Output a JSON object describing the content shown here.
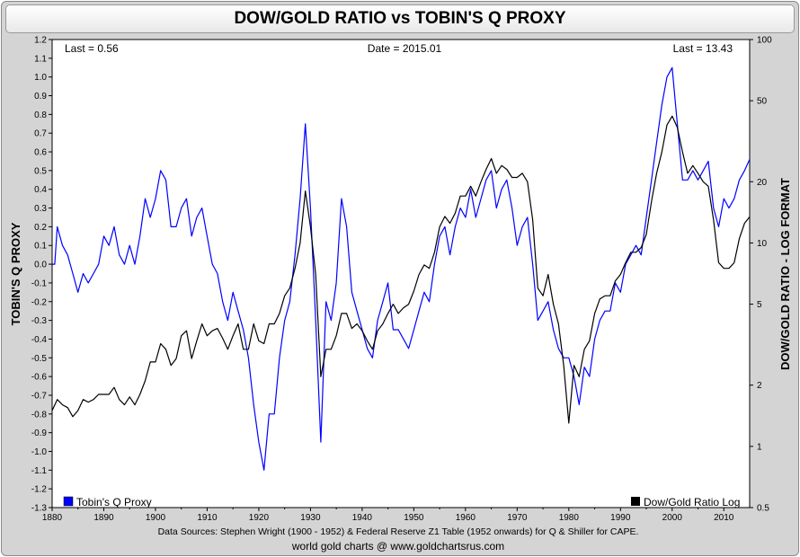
{
  "chart_data": {
    "type": "line",
    "title": "DOW/GOLD RATIO vs TOBIN'S Q PROXY",
    "ylabel_left": "TOBIN'S Q PROXY",
    "ylabel_right": "DOW/GOLD RATIO - LOG FORMAT",
    "xlim": [
      1880,
      2015
    ],
    "ylim_left": [
      -1.3,
      1.2
    ],
    "ylim_right": [
      0.5,
      100
    ],
    "right_scale": "log",
    "grid": false,
    "x_ticks": [
      "1880",
      "1890",
      "1900",
      "1910",
      "1920",
      "1930",
      "1940",
      "1950",
      "1960",
      "1970",
      "1980",
      "1990",
      "2000",
      "2010"
    ],
    "left_ticks": [
      "1.2",
      "1.1",
      "1.0",
      "0.9",
      "0.8",
      "0.7",
      "0.6",
      "0.5",
      "0.4",
      "0.3",
      "0.2",
      "0.1",
      "0.0",
      "-0.1",
      "-0.2",
      "-0.3",
      "-0.4",
      "-0.5",
      "-0.6",
      "-0.7",
      "-0.8",
      "-0.9",
      "-1.0",
      "-1.1",
      "-1.2",
      "-1.3"
    ],
    "right_ticks": [
      "100",
      "50",
      "20",
      "10",
      "5",
      "2",
      "1",
      "0.5"
    ],
    "annotations": {
      "last_left": "Last = 0.56",
      "date": "Date = 2015.01",
      "last_right": "Last = 13.43"
    },
    "legend": {
      "tobin": "Tobin's Q Proxy",
      "dowgold": "Dow/Gold Ratio Log"
    },
    "series": [
      {
        "name": "Tobin's Q Proxy",
        "color": "#0000ff",
        "axis": "left",
        "points": [
          [
            1880,
            0.0
          ],
          [
            1880.5,
            0.0
          ],
          [
            1881,
            0.2
          ],
          [
            1882,
            0.1
          ],
          [
            1883,
            0.05
          ],
          [
            1884,
            -0.05
          ],
          [
            1885,
            -0.15
          ],
          [
            1886,
            -0.05
          ],
          [
            1887,
            -0.1
          ],
          [
            1888,
            -0.05
          ],
          [
            1889,
            0.0
          ],
          [
            1890,
            0.15
          ],
          [
            1891,
            0.1
          ],
          [
            1892,
            0.2
          ],
          [
            1893,
            0.05
          ],
          [
            1894,
            0.0
          ],
          [
            1895,
            0.1
          ],
          [
            1896,
            0.0
          ],
          [
            1897,
            0.15
          ],
          [
            1898,
            0.35
          ],
          [
            1899,
            0.25
          ],
          [
            1900,
            0.35
          ],
          [
            1901,
            0.5
          ],
          [
            1902,
            0.45
          ],
          [
            1903,
            0.2
          ],
          [
            1904,
            0.2
          ],
          [
            1905,
            0.3
          ],
          [
            1906,
            0.35
          ],
          [
            1907,
            0.15
          ],
          [
            1908,
            0.25
          ],
          [
            1909,
            0.3
          ],
          [
            1910,
            0.15
          ],
          [
            1911,
            0.0
          ],
          [
            1912,
            -0.05
          ],
          [
            1913,
            -0.2
          ],
          [
            1914,
            -0.3
          ],
          [
            1915,
            -0.15
          ],
          [
            1916,
            -0.25
          ],
          [
            1917,
            -0.35
          ],
          [
            1918,
            -0.5
          ],
          [
            1919,
            -0.75
          ],
          [
            1920,
            -0.95
          ],
          [
            1921,
            -1.1
          ],
          [
            1922,
            -0.8
          ],
          [
            1923,
            -0.8
          ],
          [
            1924,
            -0.5
          ],
          [
            1925,
            -0.3
          ],
          [
            1926,
            -0.2
          ],
          [
            1927,
            0.05
          ],
          [
            1928,
            0.35
          ],
          [
            1929,
            0.75
          ],
          [
            1930,
            0.3
          ],
          [
            1931,
            -0.3
          ],
          [
            1932,
            -0.95
          ],
          [
            1933,
            -0.2
          ],
          [
            1934,
            -0.3
          ],
          [
            1935,
            -0.1
          ],
          [
            1936,
            0.35
          ],
          [
            1937,
            0.2
          ],
          [
            1938,
            -0.15
          ],
          [
            1939,
            -0.25
          ],
          [
            1940,
            -0.35
          ],
          [
            1941,
            -0.45
          ],
          [
            1942,
            -0.5
          ],
          [
            1943,
            -0.3
          ],
          [
            1944,
            -0.2
          ],
          [
            1945,
            -0.1
          ],
          [
            1946,
            -0.35
          ],
          [
            1947,
            -0.35
          ],
          [
            1948,
            -0.4
          ],
          [
            1949,
            -0.45
          ],
          [
            1950,
            -0.35
          ],
          [
            1951,
            -0.25
          ],
          [
            1952,
            -0.15
          ],
          [
            1953,
            -0.2
          ],
          [
            1954,
            0.0
          ],
          [
            1955,
            0.15
          ],
          [
            1956,
            0.2
          ],
          [
            1957,
            0.05
          ],
          [
            1958,
            0.2
          ],
          [
            1959,
            0.3
          ],
          [
            1960,
            0.25
          ],
          [
            1961,
            0.4
          ],
          [
            1962,
            0.25
          ],
          [
            1963,
            0.35
          ],
          [
            1964,
            0.45
          ],
          [
            1965,
            0.5
          ],
          [
            1966,
            0.3
          ],
          [
            1967,
            0.4
          ],
          [
            1968,
            0.45
          ],
          [
            1969,
            0.3
          ],
          [
            1970,
            0.1
          ],
          [
            1971,
            0.2
          ],
          [
            1972,
            0.25
          ],
          [
            1973,
            0.0
          ],
          [
            1974,
            -0.3
          ],
          [
            1975,
            -0.25
          ],
          [
            1976,
            -0.2
          ],
          [
            1977,
            -0.35
          ],
          [
            1978,
            -0.45
          ],
          [
            1979,
            -0.5
          ],
          [
            1980,
            -0.5
          ],
          [
            1981,
            -0.6
          ],
          [
            1982,
            -0.75
          ],
          [
            1983,
            -0.55
          ],
          [
            1984,
            -0.6
          ],
          [
            1985,
            -0.4
          ],
          [
            1986,
            -0.3
          ],
          [
            1987,
            -0.25
          ],
          [
            1988,
            -0.25
          ],
          [
            1989,
            -0.1
          ],
          [
            1990,
            -0.15
          ],
          [
            1991,
            0.0
          ],
          [
            1992,
            0.05
          ],
          [
            1993,
            0.1
          ],
          [
            1994,
            0.05
          ],
          [
            1995,
            0.25
          ],
          [
            1996,
            0.45
          ],
          [
            1997,
            0.65
          ],
          [
            1998,
            0.85
          ],
          [
            1999,
            1.0
          ],
          [
            2000,
            1.05
          ],
          [
            2001,
            0.75
          ],
          [
            2002,
            0.45
          ],
          [
            2003,
            0.45
          ],
          [
            2004,
            0.5
          ],
          [
            2005,
            0.45
          ],
          [
            2006,
            0.5
          ],
          [
            2007,
            0.55
          ],
          [
            2008,
            0.3
          ],
          [
            2009,
            0.2
          ],
          [
            2010,
            0.35
          ],
          [
            2011,
            0.3
          ],
          [
            2012,
            0.35
          ],
          [
            2013,
            0.45
          ],
          [
            2014,
            0.5
          ],
          [
            2015,
            0.56
          ]
        ]
      },
      {
        "name": "Dow/Gold Ratio Log",
        "color": "#000000",
        "axis": "right",
        "points": [
          [
            1880,
            1.5
          ],
          [
            1881,
            1.7
          ],
          [
            1882,
            1.6
          ],
          [
            1883,
            1.55
          ],
          [
            1884,
            1.4
          ],
          [
            1885,
            1.5
          ],
          [
            1886,
            1.7
          ],
          [
            1887,
            1.65
          ],
          [
            1888,
            1.7
          ],
          [
            1889,
            1.8
          ],
          [
            1890,
            1.8
          ],
          [
            1891,
            1.8
          ],
          [
            1892,
            1.95
          ],
          [
            1893,
            1.7
          ],
          [
            1894,
            1.6
          ],
          [
            1895,
            1.75
          ],
          [
            1896,
            1.6
          ],
          [
            1897,
            1.8
          ],
          [
            1898,
            2.1
          ],
          [
            1899,
            2.6
          ],
          [
            1900,
            2.6
          ],
          [
            1901,
            3.2
          ],
          [
            1902,
            3.0
          ],
          [
            1903,
            2.5
          ],
          [
            1904,
            2.7
          ],
          [
            1905,
            3.5
          ],
          [
            1906,
            3.7
          ],
          [
            1907,
            2.7
          ],
          [
            1908,
            3.3
          ],
          [
            1909,
            4.0
          ],
          [
            1910,
            3.5
          ],
          [
            1911,
            3.7
          ],
          [
            1912,
            3.8
          ],
          [
            1913,
            3.4
          ],
          [
            1914,
            3.0
          ],
          [
            1915,
            3.5
          ],
          [
            1916,
            4.0
          ],
          [
            1917,
            3.0
          ],
          [
            1918,
            3.0
          ],
          [
            1919,
            4.0
          ],
          [
            1920,
            3.3
          ],
          [
            1921,
            3.2
          ],
          [
            1922,
            4.0
          ],
          [
            1923,
            4.0
          ],
          [
            1924,
            4.5
          ],
          [
            1925,
            5.5
          ],
          [
            1926,
            6.0
          ],
          [
            1927,
            7.5
          ],
          [
            1928,
            10.0
          ],
          [
            1929,
            18.0
          ],
          [
            1930,
            12.0
          ],
          [
            1931,
            7.0
          ],
          [
            1932,
            2.2
          ],
          [
            1933,
            3.0
          ],
          [
            1934,
            3.0
          ],
          [
            1935,
            3.5
          ],
          [
            1936,
            4.5
          ],
          [
            1937,
            4.5
          ],
          [
            1938,
            3.8
          ],
          [
            1939,
            4.0
          ],
          [
            1940,
            3.7
          ],
          [
            1941,
            3.3
          ],
          [
            1942,
            3.0
          ],
          [
            1943,
            3.7
          ],
          [
            1944,
            4.0
          ],
          [
            1945,
            4.5
          ],
          [
            1946,
            5.0
          ],
          [
            1947,
            4.5
          ],
          [
            1948,
            4.8
          ],
          [
            1949,
            5.0
          ],
          [
            1950,
            5.8
          ],
          [
            1951,
            7.0
          ],
          [
            1952,
            7.8
          ],
          [
            1953,
            7.5
          ],
          [
            1954,
            9.0
          ],
          [
            1955,
            12.0
          ],
          [
            1956,
            13.5
          ],
          [
            1957,
            12.5
          ],
          [
            1958,
            14.0
          ],
          [
            1959,
            17.0
          ],
          [
            1960,
            17.0
          ],
          [
            1961,
            19.0
          ],
          [
            1962,
            17.0
          ],
          [
            1963,
            20.0
          ],
          [
            1964,
            23.0
          ],
          [
            1965,
            26.0
          ],
          [
            1966,
            22.0
          ],
          [
            1967,
            24.0
          ],
          [
            1968,
            23.0
          ],
          [
            1969,
            21.0
          ],
          [
            1970,
            21.0
          ],
          [
            1971,
            22.0
          ],
          [
            1972,
            20.0
          ],
          [
            1973,
            13.0
          ],
          [
            1974,
            6.0
          ],
          [
            1975,
            5.5
          ],
          [
            1976,
            7.0
          ],
          [
            1977,
            5.0
          ],
          [
            1978,
            4.0
          ],
          [
            1979,
            2.5
          ],
          [
            1980,
            1.3
          ],
          [
            1981,
            2.5
          ],
          [
            1982,
            2.2
          ],
          [
            1983,
            3.0
          ],
          [
            1984,
            3.3
          ],
          [
            1985,
            4.5
          ],
          [
            1986,
            5.3
          ],
          [
            1987,
            5.5
          ],
          [
            1988,
            5.5
          ],
          [
            1989,
            6.5
          ],
          [
            1990,
            7.0
          ],
          [
            1991,
            8.0
          ],
          [
            1992,
            9.0
          ],
          [
            1993,
            9.0
          ],
          [
            1994,
            9.5
          ],
          [
            1995,
            11.0
          ],
          [
            1996,
            16.0
          ],
          [
            1997,
            22.0
          ],
          [
            1998,
            28.0
          ],
          [
            1999,
            38.0
          ],
          [
            2000,
            42.0
          ],
          [
            2001,
            37.0
          ],
          [
            2002,
            28.0
          ],
          [
            2003,
            22.0
          ],
          [
            2004,
            24.0
          ],
          [
            2005,
            22.0
          ],
          [
            2006,
            20.0
          ],
          [
            2007,
            19.0
          ],
          [
            2008,
            13.0
          ],
          [
            2009,
            8.0
          ],
          [
            2010,
            7.5
          ],
          [
            2011,
            7.5
          ],
          [
            2012,
            8.0
          ],
          [
            2013,
            10.5
          ],
          [
            2014,
            12.5
          ],
          [
            2015,
            13.43
          ]
        ]
      }
    ]
  },
  "footer": {
    "sources": "Data Sources: Stephen Wright (1900 - 1952) & Federal Reserve Z1 Table (1952 onwards) for Q & Shiller for CAPE.",
    "credit": "world gold charts @ www.goldchartsrus.com"
  }
}
